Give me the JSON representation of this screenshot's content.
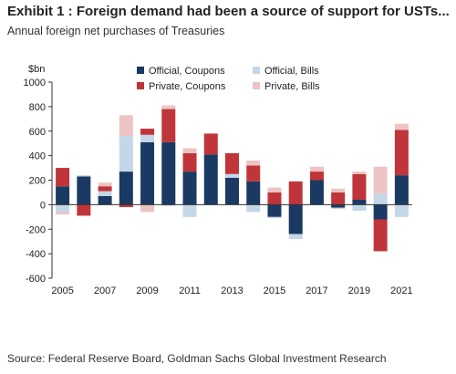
{
  "title": "Exhibit 1 : Foreign demand had been a source of support for USTs...",
  "subtitle": "Annual foreign net purchases of Treasuries",
  "source": "Source: Federal Reserve Board, Goldman Sachs Global Investment Research",
  "colors": {
    "official_coupons": "#1b3a63",
    "official_bills": "#c3d7e8",
    "private_coupons": "#c0353a",
    "private_bills": "#edc3c3"
  },
  "chart_data": {
    "type": "bar",
    "stacked": true,
    "y_unit_label": "$bn",
    "ylim": [
      -600,
      1000
    ],
    "y_ticks": [
      "1000",
      "800",
      "600",
      "400",
      "200",
      "0",
      "-200",
      "-400",
      "-600"
    ],
    "x_tick_labels": [
      "2005",
      "2007",
      "2009",
      "2011",
      "2013",
      "2015",
      "2017",
      "2019",
      "2021"
    ],
    "categories": [
      "2005",
      "2006",
      "2007",
      "2008",
      "2009",
      "2010",
      "2011",
      "2012",
      "2013",
      "2014",
      "2015",
      "2016",
      "2017",
      "2018",
      "2019",
      "2020",
      "2021"
    ],
    "legend_position": "top",
    "series": [
      {
        "name": "Official, Coupons",
        "values": [
          150,
          230,
          70,
          270,
          510,
          510,
          270,
          410,
          220,
          190,
          -100,
          -240,
          200,
          -25,
          40,
          -120,
          240
        ]
      },
      {
        "name": "Official, Bills",
        "values": [
          -60,
          10,
          40,
          290,
          60,
          -10,
          -100,
          0,
          30,
          -60,
          -10,
          -40,
          0,
          -10,
          -50,
          90,
          -100
        ]
      },
      {
        "name": "Private, Coupons",
        "values": [
          150,
          -90,
          40,
          -20,
          50,
          270,
          150,
          170,
          170,
          130,
          100,
          190,
          70,
          100,
          210,
          -260,
          370
        ]
      },
      {
        "name": "Private, Bills",
        "values": [
          -20,
          0,
          30,
          170,
          -60,
          30,
          40,
          0,
          0,
          40,
          40,
          0,
          40,
          30,
          20,
          220,
          50
        ]
      }
    ]
  }
}
